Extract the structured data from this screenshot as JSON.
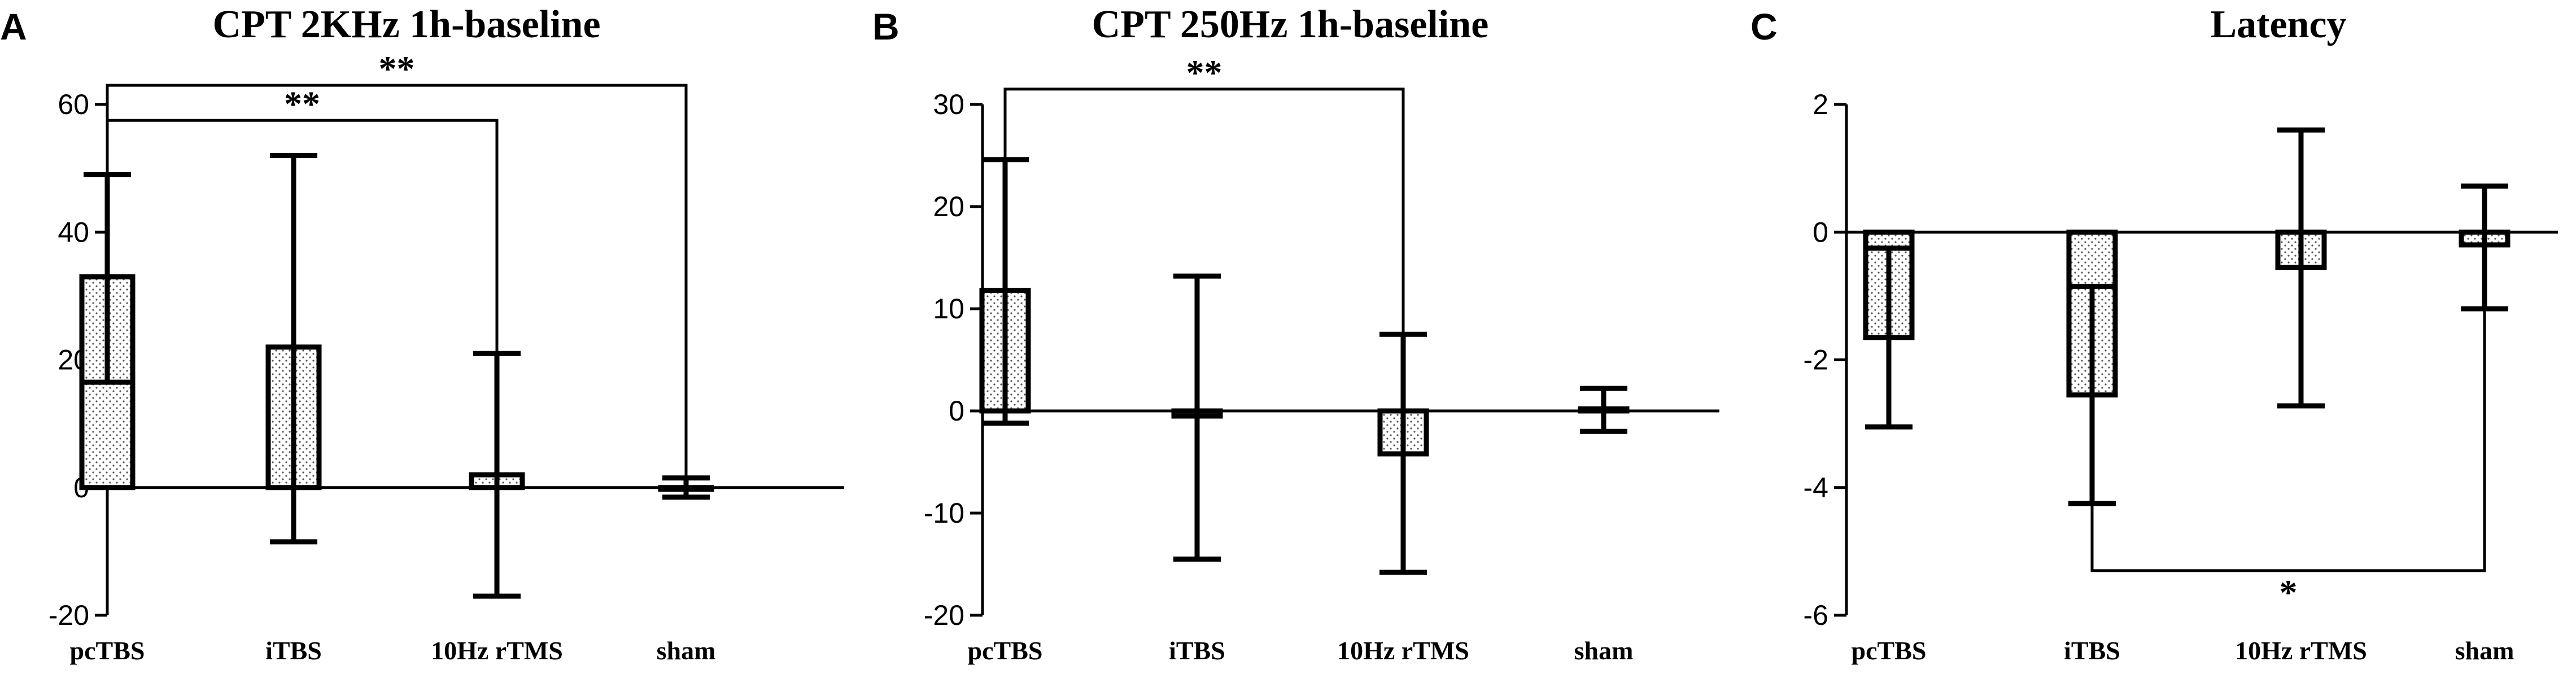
{
  "chart_data": [
    {
      "panel": "A",
      "type": "bar",
      "title": "CPT 2KHz 1h-baseline",
      "categories": [
        "pcTBS",
        "iTBS",
        "10Hz rTMS",
        "sham"
      ],
      "values": [
        33,
        22,
        2,
        0
      ],
      "error_low": [
        16.5,
        -8.5,
        -17,
        -1.5
      ],
      "error_high": [
        49,
        52,
        21,
        1.5
      ],
      "ylim": [
        -20,
        60
      ],
      "yticks": [
        60,
        40,
        20,
        0,
        -20
      ],
      "ytick_labels": [
        "60",
        "40",
        "20",
        "0",
        "-20"
      ],
      "significance": [
        {
          "from": 0,
          "to": 2,
          "label": "**",
          "y": 57.5
        },
        {
          "from": 0,
          "to": 3,
          "label": "**",
          "y": 63
        }
      ]
    },
    {
      "panel": "B",
      "type": "bar",
      "title": "CPT 250Hz 1h-baseline",
      "categories": [
        "pcTBS",
        "iTBS",
        "10Hz rTMS",
        "sham"
      ],
      "values": [
        11.8,
        -0.5,
        -4.2,
        0.2
      ],
      "error_low": [
        -1.2,
        -14.5,
        -15.8,
        -2
      ],
      "error_high": [
        24.6,
        13.2,
        7.5,
        2.2
      ],
      "ylim": [
        -20,
        30
      ],
      "yticks": [
        30,
        20,
        10,
        0,
        -10,
        -20
      ],
      "ytick_labels": [
        "30",
        "20",
        "10",
        "0",
        "-10",
        "-20"
      ],
      "significance": [
        {
          "from": 0,
          "to": 2,
          "label": "**",
          "y": 31.5
        }
      ]
    },
    {
      "panel": "C",
      "type": "bar",
      "title": "Latency",
      "categories": [
        "pcTBS",
        "iTBS",
        "10Hz rTMS",
        "sham"
      ],
      "values": [
        -1.65,
        -2.55,
        -0.55,
        -0.2
      ],
      "error_low": [
        -3.05,
        -4.25,
        -2.72,
        -1.2
      ],
      "error_high": [
        -0.25,
        -0.85,
        1.6,
        0.72
      ],
      "ylim": [
        -6,
        2
      ],
      "yticks": [
        2,
        0,
        -2,
        -4,
        -6
      ],
      "ytick_labels": [
        "2",
        "0",
        "-2",
        "-4",
        "-6"
      ],
      "significance": [
        {
          "from": 1,
          "to": 3,
          "label": "*",
          "y": -5.3,
          "below": true
        }
      ]
    }
  ]
}
